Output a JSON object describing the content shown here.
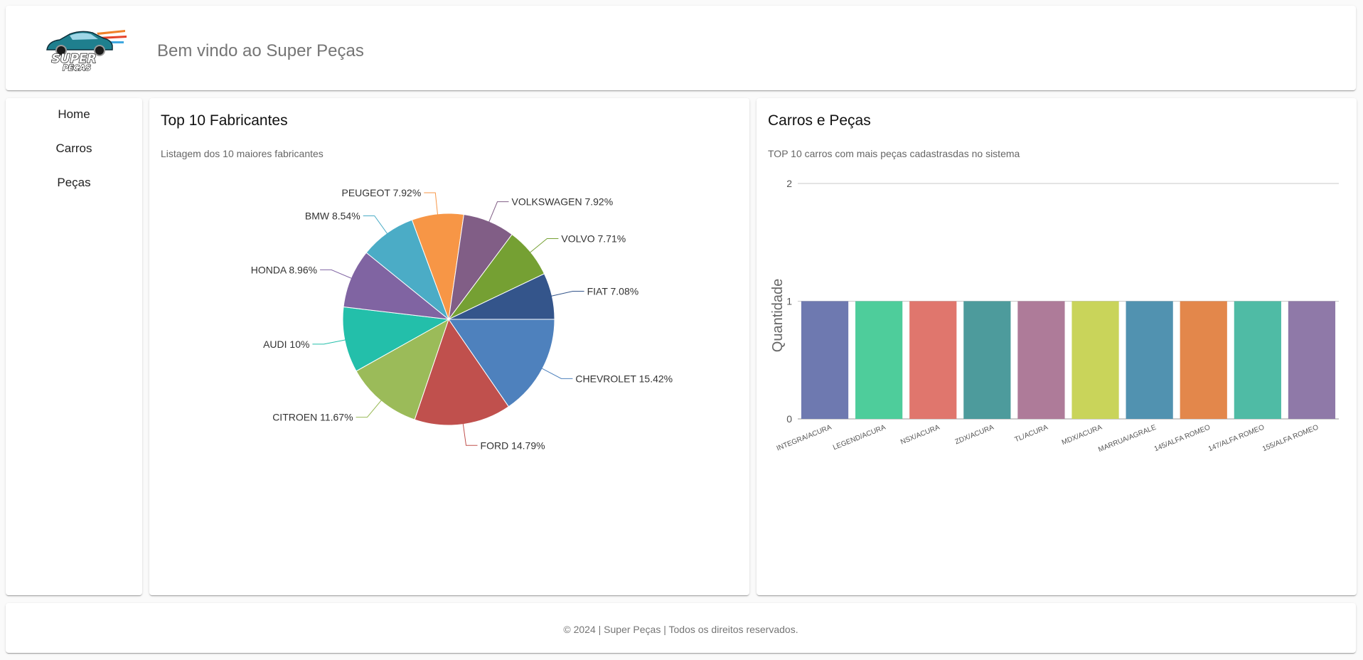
{
  "header": {
    "welcome": "Bem vindo ao Super Peças",
    "logo": {
      "line1": "SUPER",
      "line2": "PEÇAS"
    }
  },
  "sidebar": {
    "items": [
      {
        "label": "Home"
      },
      {
        "label": "Carros"
      },
      {
        "label": "Peças"
      }
    ]
  },
  "pie_card": {
    "title": "Top 10 Fabricantes",
    "subtitle": "Listagem dos 10 maiores fabricantes"
  },
  "bar_card": {
    "title": "Carros e Peças",
    "subtitle": "TOP 10 carros com mais peças cadastrasdas no sistema"
  },
  "footer": {
    "text": "© 2024 | Super Peças | Todos os direitos reservados."
  },
  "chart_data": [
    {
      "type": "pie",
      "title": "Top 10 Fabricantes",
      "slices": [
        {
          "label": "CHEVROLET",
          "value": 15.42,
          "display": "15.42%",
          "color": "#4e81bd"
        },
        {
          "label": "FORD",
          "value": 14.79,
          "display": "14.79%",
          "color": "#c0504d"
        },
        {
          "label": "CITROEN",
          "value": 11.67,
          "display": "11.67%",
          "color": "#9bbb59"
        },
        {
          "label": "AUDI",
          "value": 10,
          "display": "10%",
          "color": "#23bfaa"
        },
        {
          "label": "HONDA",
          "value": 8.96,
          "display": "8.96%",
          "color": "#8064a2"
        },
        {
          "label": "BMW",
          "value": 8.54,
          "display": "8.54%",
          "color": "#4bacc6"
        },
        {
          "label": "PEUGEOT",
          "value": 7.92,
          "display": "7.92%",
          "color": "#f79646"
        },
        {
          "label": "VOLKSWAGEN",
          "value": 7.92,
          "display": "7.92%",
          "color": "#815e86"
        },
        {
          "label": "VOLVO",
          "value": 7.71,
          "display": "7.71%",
          "color": "#75a033"
        },
        {
          "label": "FIAT",
          "value": 7.08,
          "display": "7.08%",
          "color": "#34558b"
        }
      ]
    },
    {
      "type": "bar",
      "title": "Carros e Peças",
      "ylabel": "Quantidade",
      "ylim": [
        0,
        2
      ],
      "yticks": [
        0,
        1,
        2
      ],
      "categories": [
        "INTEGRA/ACURA",
        "LEGEND/ACURA",
        "NSX/ACURA",
        "ZDX/ACURA",
        "TL/ACURA",
        "MDX/ACURA",
        "MARRUA/AGRALE",
        "145/ALFA ROMEO",
        "147/ALFA ROMEO",
        "155/ALFA ROMEO"
      ],
      "values": [
        1,
        1,
        1,
        1,
        1,
        1,
        1,
        1,
        1,
        1
      ],
      "colors": [
        "#6e79b0",
        "#4ecd9b",
        "#e0766d",
        "#4d9b9c",
        "#ae7b99",
        "#c9d45a",
        "#5192b0",
        "#e3874b",
        "#4fbba5",
        "#8f79a8"
      ]
    }
  ]
}
